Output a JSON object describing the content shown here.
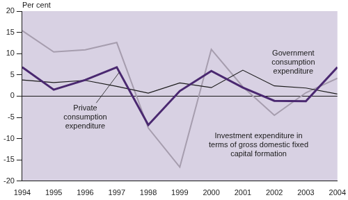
{
  "chart_data": {
    "type": "line",
    "y_label": "Per cent",
    "x": [
      1994,
      1995,
      1996,
      1997,
      1998,
      1999,
      2000,
      2001,
      2002,
      2003,
      2004
    ],
    "xlim": [
      1994,
      2004
    ],
    "xticks": [
      1994,
      1995,
      1996,
      1997,
      1998,
      1999,
      2000,
      2001,
      2002,
      2003,
      2004
    ],
    "ylim": [
      -20,
      20
    ],
    "yticks": [
      -20,
      -15,
      -10,
      -5,
      0,
      5,
      10,
      15,
      20
    ],
    "grid": false,
    "series": [
      {
        "name": "Government consumption expenditure",
        "color": "#1a1a1a",
        "line_style": "solid",
        "values": [
          3.8,
          3.2,
          3.7,
          2.3,
          0.7,
          3.1,
          2.0,
          6.1,
          2.4,
          1.9,
          0.5
        ]
      },
      {
        "name": "Private consumption expenditure",
        "color": "#4a2870",
        "line_style": "solid",
        "values": [
          6.8,
          1.5,
          3.8,
          6.8,
          -6.8,
          1.2,
          5.9,
          2.0,
          -1.1,
          -1.2,
          6.8
        ]
      },
      {
        "name": "Investment expenditure in terms of gross domestic fixed capital formation",
        "color": "#a69dae",
        "line_style": "solid",
        "values": [
          15.4,
          10.4,
          10.9,
          12.6,
          -7.5,
          -16.7,
          11.0,
          2.2,
          -4.5,
          0.8,
          4.2
        ]
      }
    ]
  }
}
